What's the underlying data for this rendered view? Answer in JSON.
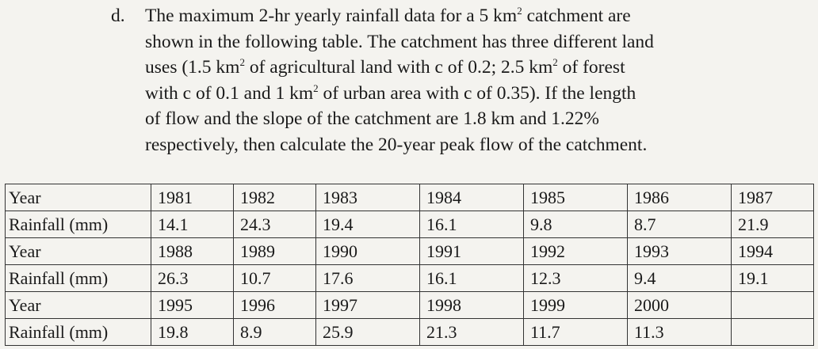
{
  "question": {
    "marker": "d.",
    "lines": [
      {
        "pre": "The maximum 2-hr yearly rainfall data for a 5 km",
        "sup": "2",
        "post": " catchment are"
      },
      {
        "pre": "shown in the following table. The catchment has three different land",
        "sup": "",
        "post": ""
      },
      {
        "pre": "uses (1.5 km",
        "sup": "2",
        "post": " of agricultural land with c of 0.2; 2.5 km",
        "sup2": "2",
        "post2": " of forest"
      },
      {
        "pre": "with c of 0.1 and 1 km",
        "sup": "2",
        "post": " of urban area with c of 0.35). If the length"
      },
      {
        "pre": "of flow and the slope of the catchment are 1.8 km and 1.22%",
        "sup": "",
        "post": ""
      },
      {
        "pre": "respectively, then calculate the 20-year peak flow of the catchment.",
        "sup": "",
        "post": ""
      }
    ]
  },
  "table": {
    "year_label": "Year",
    "rain_label": "Rainfall (mm)",
    "rows": [
      {
        "years": [
          "1981",
          "1982",
          "1983",
          "1984",
          "1985",
          "1986",
          "1987"
        ],
        "rain": [
          "14.1",
          "24.3",
          "19.4",
          "16.1",
          "9.8",
          "8.7",
          "21.9"
        ]
      },
      {
        "years": [
          "1988",
          "1989",
          "1990",
          "1991",
          "1992",
          "1993",
          "1994"
        ],
        "rain": [
          "26.3",
          "10.7",
          "17.6",
          "16.1",
          "12.3",
          "9.4",
          "19.1"
        ]
      },
      {
        "years": [
          "1995",
          "1996",
          "1997",
          "1998",
          "1999",
          "2000",
          ""
        ],
        "rain": [
          "19.8",
          "8.9",
          "25.9",
          "21.3",
          "11.7",
          "11.3",
          ""
        ]
      }
    ]
  }
}
